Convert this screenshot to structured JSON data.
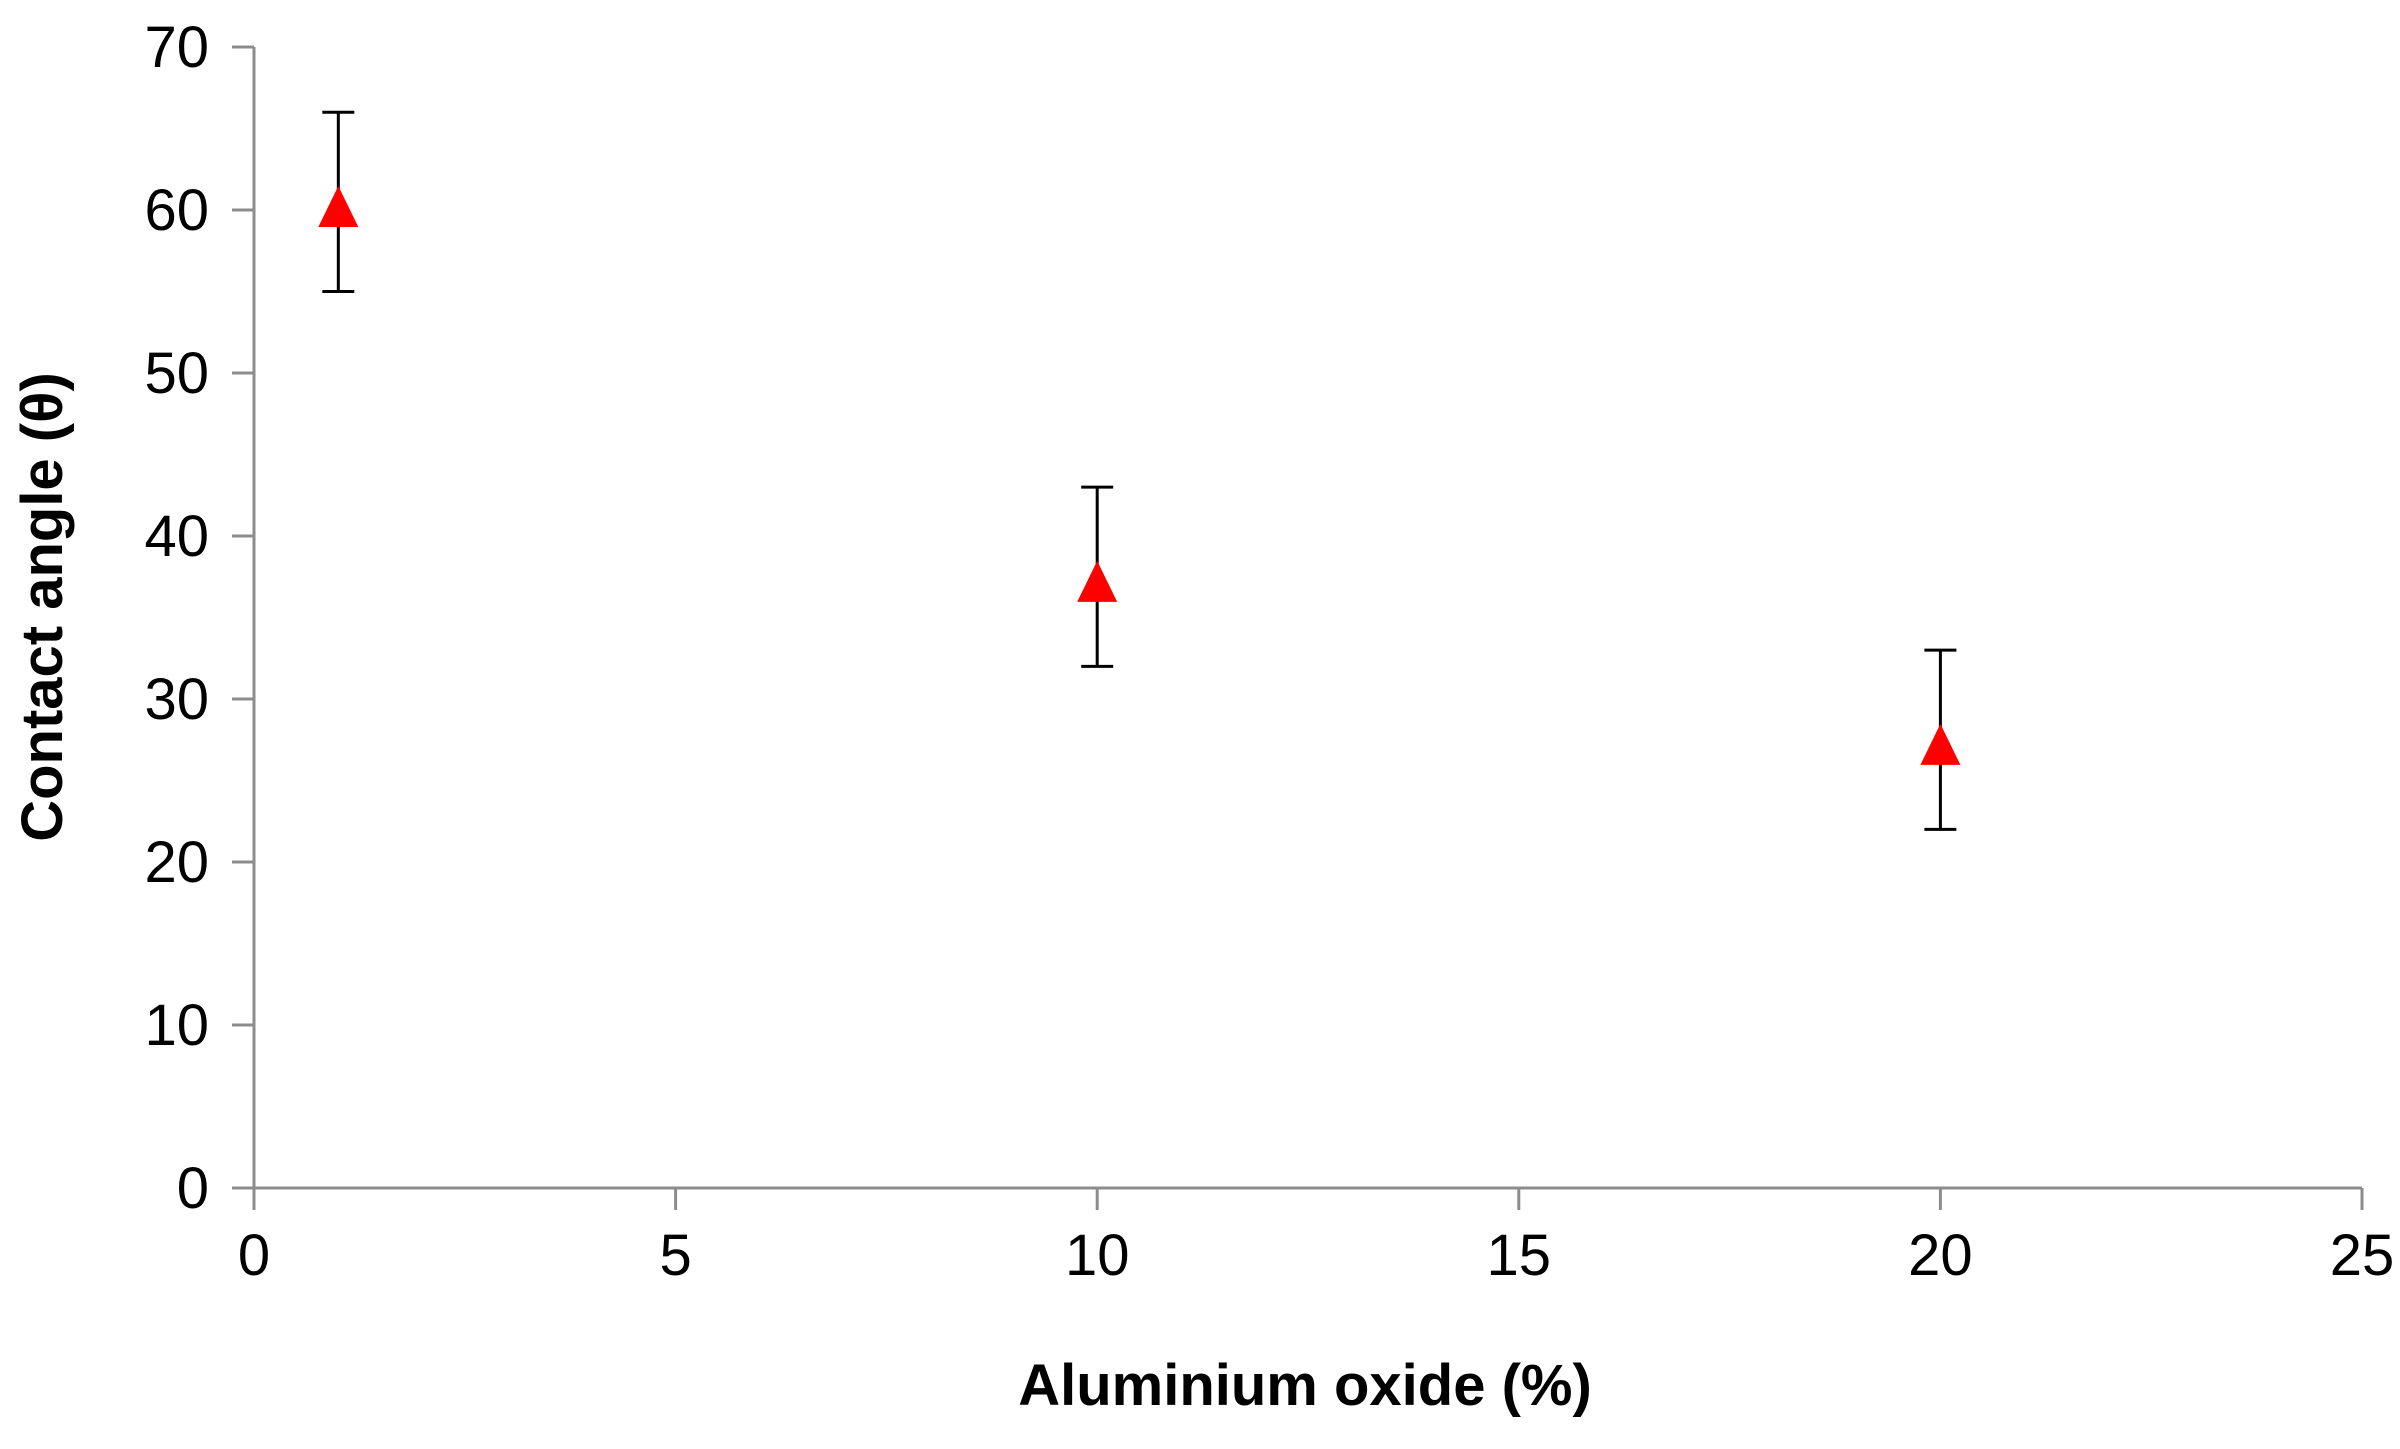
{
  "chart_data": {
    "type": "scatter",
    "title": "",
    "xlabel": "Aluminium oxide (%)",
    "ylabel": "Contact angle (θ)",
    "xlim": [
      0,
      25
    ],
    "ylim": [
      0,
      70
    ],
    "xticks": [
      0,
      5,
      10,
      15,
      20,
      25
    ],
    "yticks": [
      0,
      10,
      20,
      30,
      40,
      50,
      60,
      70
    ],
    "xtick_labels": [
      "0",
      "5",
      "10",
      "15",
      "20",
      "25"
    ],
    "ytick_labels": [
      "0",
      "10",
      "20",
      "30",
      "40",
      "50",
      "60",
      "70"
    ],
    "grid": false,
    "legend": "none",
    "marker": "triangle",
    "colors": {
      "marker": "#ff0000",
      "error_bar": "#000000",
      "axis": "#8c8c8c"
    },
    "series": [
      {
        "x": [
          1,
          10,
          20
        ],
        "y": [
          60,
          37,
          27
        ],
        "error_low": [
          55,
          32,
          22
        ],
        "error_high": [
          66,
          43,
          33
        ]
      }
    ]
  }
}
